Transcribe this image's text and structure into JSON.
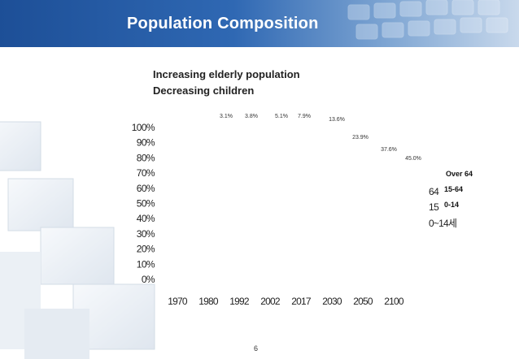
{
  "slide": {
    "title": "Population Composition",
    "subtitle_line1": "Increasing elderly population",
    "subtitle_line2": "Decreasing children",
    "page_number": "6"
  },
  "chart_data": {
    "type": "bar",
    "categories": [
      "1970",
      "1980",
      "1992",
      "2002",
      "2017",
      "2030",
      "2050",
      "2100"
    ],
    "y_ticks": [
      "100%",
      "90%",
      "80%",
      "70%",
      "60%",
      "50%",
      "40%",
      "30%",
      "20%",
      "10%",
      "0%"
    ],
    "ylim": [
      0,
      100
    ],
    "data_labels": [
      "3.1%",
      "3.8%",
      "5.1%",
      "7.9%",
      "13.6%",
      "23.9%",
      "37.6%",
      "45.0%"
    ],
    "series": [
      {
        "name": "Over 64",
        "values": [
          3.1,
          3.8,
          5.1,
          7.9,
          13.6,
          23.9,
          37.6,
          45.0
        ]
      }
    ],
    "legend_boxes": [
      "Over 64",
      "15-64",
      "0-14"
    ],
    "legend_text": [
      "64",
      "15",
      "0~14세"
    ],
    "legend_position": "right",
    "grid": false,
    "colors": {
      "text": "#222222",
      "label": "#333333",
      "header": "#2a5ea8"
    }
  }
}
